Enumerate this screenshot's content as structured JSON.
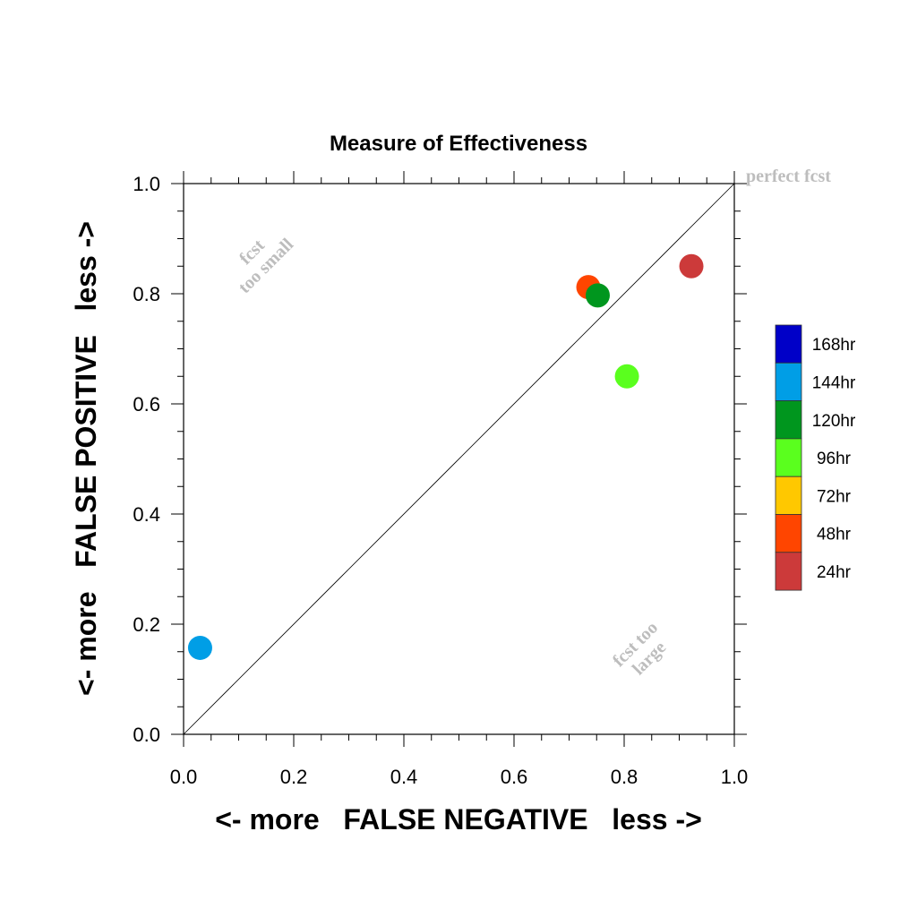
{
  "chart_data": {
    "type": "scatter",
    "title": "Measure of Effectiveness",
    "xlabel": "<- more   FALSE NEGATIVE   less ->",
    "ylabel": "<- more   FALSE POSITIVE   less ->",
    "xlim": [
      0.0,
      1.0
    ],
    "ylim": [
      0.0,
      1.0
    ],
    "xticks": [
      "0.0",
      "0.2",
      "0.4",
      "0.6",
      "0.8",
      "1.0"
    ],
    "yticks": [
      "0.0",
      "0.2",
      "0.4",
      "0.6",
      "0.8",
      "1.0"
    ],
    "grid": false,
    "reference_line": {
      "from": [
        0,
        0
      ],
      "to": [
        1,
        1
      ]
    },
    "annotations": {
      "perfect": "perfect fcst",
      "too_small_line1": "fcst",
      "too_small_line2": "too small",
      "too_large_line1": "fcst too",
      "too_large_line2": "large"
    },
    "points": [
      {
        "x": 0.922,
        "y": 0.85,
        "color": "#cc3a3a",
        "legend": "24hr"
      },
      {
        "x": 0.735,
        "y": 0.812,
        "color": "#ff4500",
        "legend": "48hr"
      },
      {
        "x": 0.752,
        "y": 0.797,
        "color": "#00961e",
        "legend": "120hr"
      },
      {
        "x": 0.805,
        "y": 0.65,
        "color": "#5aff1e",
        "legend": "96hr"
      },
      {
        "x": 0.03,
        "y": 0.157,
        "color": "#009ee6",
        "legend": "144hr"
      }
    ],
    "legend": {
      "placement": "right",
      "entries": [
        {
          "label": "168hr",
          "color": "#0000c8"
        },
        {
          "label": "144hr",
          "color": "#009ee6"
        },
        {
          "label": "120hr",
          "color": "#00961e"
        },
        {
          "label": "96hr",
          "color": "#5aff1e"
        },
        {
          "label": "72hr",
          "color": "#ffc800"
        },
        {
          "label": "48hr",
          "color": "#ff4500"
        },
        {
          "label": "24hr",
          "color": "#cc3a3a"
        }
      ]
    }
  }
}
